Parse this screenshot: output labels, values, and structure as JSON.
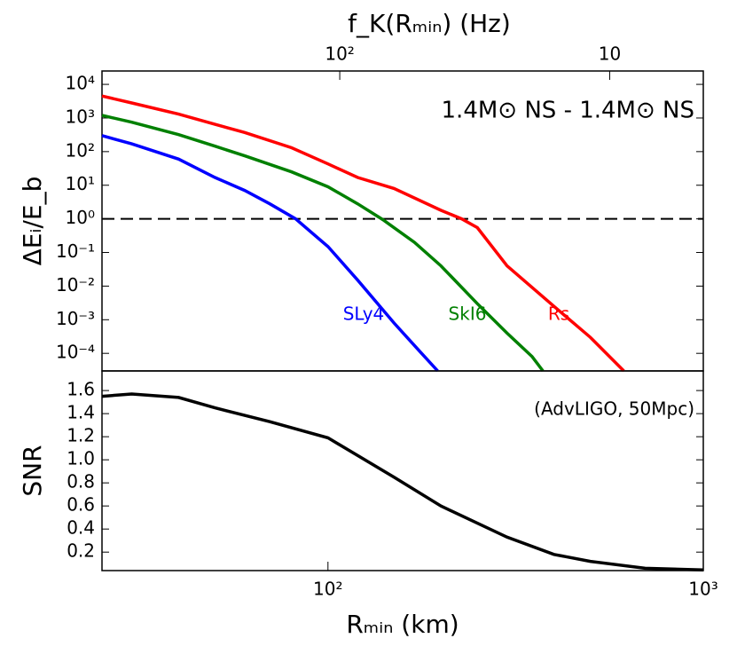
{
  "chart_data": [
    {
      "type": "line",
      "ylog": true,
      "xlog": true,
      "x2label": "f_K(Rₘᵢₙ) (Hz)",
      "x2lim": [
        760,
        4.5
      ],
      "x2ticks": [
        {
          "value": 100,
          "label": "10²"
        },
        10
      ],
      "ylabel": "ΔEᵢ/E_b",
      "annotation": "1.4M⊙ NS - 1.4M⊙ NS",
      "xlim": [
        25,
        1000
      ],
      "ylim": [
        3e-05,
        25000
      ],
      "yticks": [
        {
          "value": 10000,
          "label": "10⁴"
        },
        {
          "value": 1000,
          "label": "10³"
        },
        {
          "value": 100,
          "label": "10²"
        },
        {
          "value": 10,
          "label": "10¹"
        },
        {
          "value": 1,
          "label": "10⁰"
        },
        {
          "value": 0.1,
          "label": "10⁻¹"
        },
        {
          "value": 0.01,
          "label": "10⁻²"
        },
        {
          "value": 0.001,
          "label": "10⁻³"
        },
        {
          "value": 0.0001,
          "label": "10⁻⁴"
        }
      ],
      "hline": 1,
      "series": [
        {
          "name": "SLy4",
          "color": "#0000ff",
          "x": [
            25,
            30,
            40,
            50,
            60,
            70,
            82,
            100,
            120,
            150,
            175,
            196
          ],
          "values": [
            300,
            170,
            60,
            17,
            7,
            2.8,
            1,
            0.15,
            0.015,
            0.0008,
            0.00012,
            3e-05
          ]
        },
        {
          "name": "SkI6",
          "color": "#008000",
          "x": [
            25,
            30,
            40,
            50,
            60,
            80,
            100,
            120,
            140,
            170,
            200,
            250,
            300,
            350,
            374
          ],
          "values": [
            1200,
            750,
            320,
            145,
            75,
            25,
            9,
            2.8,
            0.95,
            0.2,
            0.04,
            0.003,
            0.0004,
            8e-05,
            3e-05
          ]
        },
        {
          "name": "Rs",
          "color": "#ff0000",
          "x": [
            25,
            30,
            40,
            50,
            60,
            80,
            100,
            120,
            150,
            200,
            227,
            250,
            300,
            400,
            500,
            614
          ],
          "values": [
            4500,
            2800,
            1300,
            650,
            370,
            130,
            43,
            17,
            8,
            1.8,
            1,
            0.55,
            0.04,
            0.0025,
            0.0003,
            3e-05
          ]
        }
      ]
    },
    {
      "type": "line",
      "xlog": true,
      "ylabel": "SNR",
      "xlabel": "Rₘᵢₙ (km)",
      "annotation": "(AdvLIGO, 50Mpc)",
      "xlim": [
        25,
        1000
      ],
      "ylim": [
        0.04,
        1.77
      ],
      "xticks": [
        {
          "value": 100,
          "label": "10²"
        },
        {
          "value": 1000,
          "label": "10³"
        }
      ],
      "yticks": [
        0.2,
        0.4,
        0.6,
        0.8,
        {
          "value": 1,
          "label": "1.0"
        },
        1.2,
        1.4,
        1.6
      ],
      "series": [
        {
          "color": "#000000",
          "x": [
            25,
            30,
            40,
            50,
            70,
            100,
            150,
            200,
            300,
            400,
            500,
            700,
            1000
          ],
          "values": [
            1.55,
            1.57,
            1.54,
            1.45,
            1.33,
            1.19,
            0.85,
            0.6,
            0.33,
            0.18,
            0.12,
            0.06,
            0.045
          ]
        }
      ]
    }
  ]
}
